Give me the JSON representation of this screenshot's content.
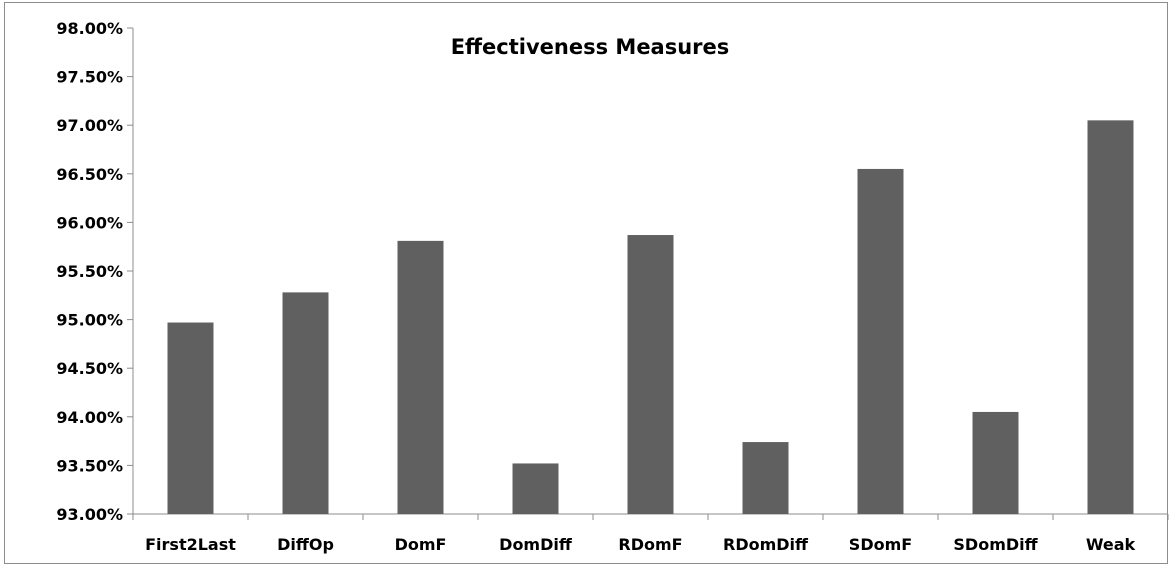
{
  "chart_data": {
    "type": "bar",
    "title": "Effectiveness Measures",
    "xlabel": "",
    "ylabel": "",
    "categories": [
      "First2Last",
      "DiffOp",
      "DomF",
      "DomDiff",
      "RDomF",
      "RDomDiff",
      "SDomF",
      "SDomDiff",
      "Weak"
    ],
    "values": [
      94.97,
      95.28,
      95.81,
      93.52,
      95.87,
      93.74,
      96.55,
      94.05,
      97.05
    ],
    "ylim": [
      93.0,
      98.0
    ],
    "yticks": [
      "93.00%",
      "93.50%",
      "94.00%",
      "94.50%",
      "95.00%",
      "95.50%",
      "96.00%",
      "96.50%",
      "97.00%",
      "97.50%",
      "98.00%"
    ],
    "value_unit": "%",
    "grid": false,
    "legend": "none",
    "bar_color": "#606060"
  }
}
